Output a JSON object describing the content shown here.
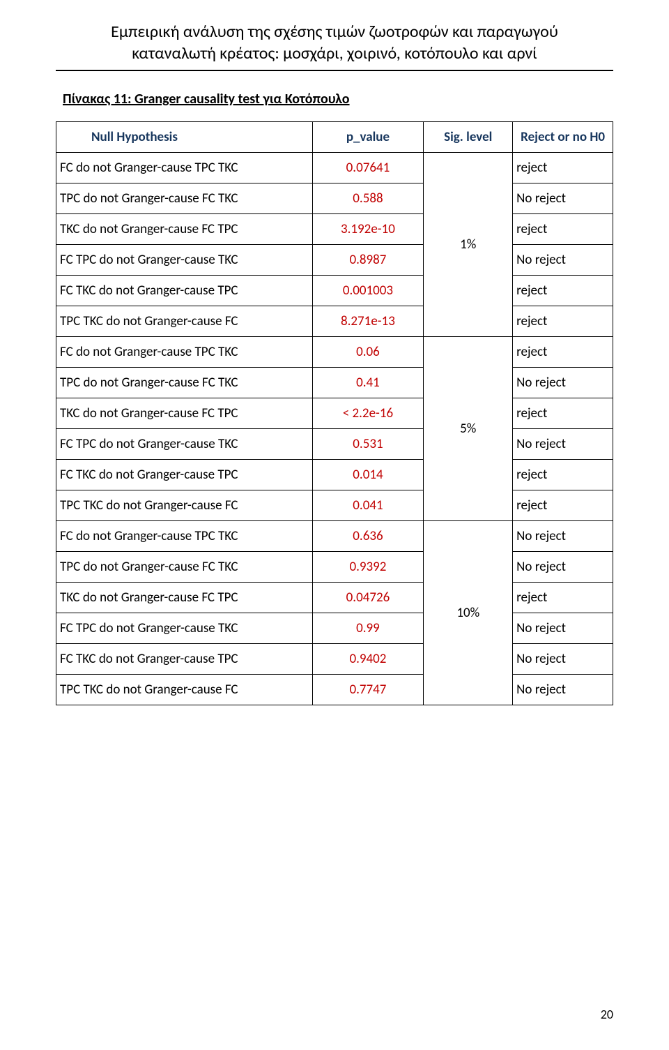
{
  "header": {
    "title_line1": "Εμπειρική ανάλυση της σχέσης τιμών ζωοτροφών και παραγωγού",
    "title_line2": "καταναλωτή κρέατος: μοσχάρι, χοιρινό, κοτόπουλο και αρνί"
  },
  "table_caption": "Πίνακας 11: Granger causality test για Κοτόπουλο",
  "columns": {
    "c1": "Null Hypothesis",
    "c2": "p_value",
    "c3": "Sig. level",
    "c4": "Reject or no H0"
  },
  "colors": {
    "header_text": "#17365d",
    "pvalue_text": "#c00000",
    "border": "#000000",
    "background": "#ffffff"
  },
  "groups": [
    {
      "sig_level": "1%",
      "rows": [
        {
          "hyp": "FC do not Granger-cause TPC TKC",
          "pval": "0.07641",
          "res": "reject"
        },
        {
          "hyp": "TPC do not Granger-cause FC TKC",
          "pval": "0.588",
          "res": "No reject"
        },
        {
          "hyp": "TKC do not Granger-cause FC TPC",
          "pval": "3.192e-10",
          "res": "reject"
        },
        {
          "hyp": "FC TPC do not Granger-cause TKC",
          "pval": "0.8987",
          "res": "No reject"
        },
        {
          "hyp": "FC TKC do not Granger-cause TPC",
          "pval": "0.001003",
          "res": "reject"
        },
        {
          "hyp": "TPC TKC do not Granger-cause FC",
          "pval": "8.271e-13",
          "res": "reject"
        }
      ]
    },
    {
      "sig_level": "5%",
      "rows": [
        {
          "hyp": "FC do not Granger-cause TPC TKC",
          "pval": "0.06",
          "res": " reject"
        },
        {
          "hyp": "TPC do not Granger-cause FC TKC",
          "pval": "0.41",
          "res": "No reject"
        },
        {
          "hyp": "TKC do not Granger-cause FC TPC",
          "pval": "< 2.2e-16",
          "res": "reject"
        },
        {
          "hyp": "FC TPC do not Granger-cause TKC",
          "pval": "0.531",
          "res": "No reject"
        },
        {
          "hyp": "FC TKC do not Granger-cause TPC",
          "pval": "0.014",
          "res": "reject"
        },
        {
          "hyp": "TPC TKC do not Granger-cause FC",
          "pval": "0.041",
          "res": "reject"
        }
      ]
    },
    {
      "sig_level": "10%",
      "rows": [
        {
          "hyp": "FC do not Granger-cause TPC TKC",
          "pval": "0.636",
          "res": "No reject"
        },
        {
          "hyp": "TPC do not Granger-cause FC TKC",
          "pval": "0.9392",
          "res": "No reject"
        },
        {
          "hyp": "TKC do not Granger-cause FC TPC",
          "pval": "0.04726",
          "res": "reject"
        },
        {
          "hyp": "FC TPC do not Granger-cause TKC",
          "pval": "0.99",
          "res": "No reject"
        },
        {
          "hyp": "FC TKC do not Granger-cause TPC",
          "pval": "0.9402",
          "res": "No reject"
        },
        {
          "hyp": "TPC TKC do not Granger-cause FC",
          "pval": "0.7747",
          "res": "No reject"
        }
      ]
    }
  ],
  "page_number": "20",
  "table_style": {
    "font_family": "Calibri",
    "header_fontsize": 19,
    "cell_fontsize": 19,
    "border_width": 1.5,
    "col_widths_pct": [
      46,
      20,
      16,
      18
    ]
  }
}
